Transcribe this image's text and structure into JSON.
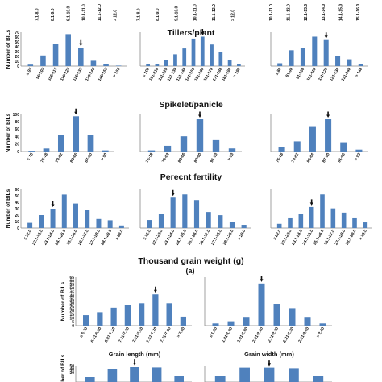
{
  "figure": {
    "section_titles": [
      "Tillers/plant",
      "Spikelet/panicle",
      "Perecnt fertility",
      "Thousand grain weight (g)"
    ],
    "panel_label_a": "(a)",
    "ylabel": "Number of BILs",
    "sub_xlabels": [
      "Grain length (mm)",
      "Grain width (mm)"
    ]
  },
  "chart_data": [
    {
      "type": "bar",
      "title": "",
      "ylabel": "",
      "categories": [
        "7.1-8.0",
        "8.1-9.0",
        "9.1-10.0",
        "10.1-11.0",
        "11.1-12.0",
        "> 12.0"
      ],
      "values": [
        2,
        8,
        22,
        40,
        12,
        4
      ],
      "arrow_index": null
    },
    {
      "type": "bar",
      "title": "",
      "ylabel": "",
      "categories": [
        "7.1-8.0",
        "8.1-9.0",
        "9.1-10.0",
        "10.1-11.0",
        "11.1-12.0",
        "> 12.0"
      ],
      "values": [
        3,
        10,
        25,
        38,
        14,
        5
      ],
      "arrow_index": null
    },
    {
      "type": "bar",
      "title": "",
      "ylabel": "",
      "categories": [
        "10.1-11.0",
        "11.1-12.0",
        "12.1-13.0",
        "13.1-14.0",
        "14.1-15.0",
        "15.1-16.0"
      ],
      "values": [
        4,
        12,
        30,
        36,
        15,
        6
      ],
      "arrow_index": null
    },
    {
      "type": "bar",
      "title": "",
      "ylabel": "Number of BILs",
      "ylim": [
        0,
        70
      ],
      "yticks": [
        0,
        10,
        20,
        30,
        40,
        50,
        60,
        70
      ],
      "categories": [
        "≤ 95",
        "96-105",
        "106-115",
        "116-125",
        "126-135",
        "136-145",
        "145-155",
        "> 155"
      ],
      "values": [
        3,
        22,
        45,
        66,
        38,
        11,
        4,
        1
      ],
      "arrow_index": 4
    },
    {
      "type": "bar",
      "title": "",
      "ylabel": "",
      "categories": [
        "≤ 100",
        "101-110",
        "111-120",
        "121-130",
        "131-140",
        "141-150",
        "151-160",
        "161-170",
        "171-180",
        "181-190",
        "> 190"
      ],
      "values": [
        2,
        2,
        6,
        12,
        18,
        28,
        30,
        22,
        14,
        6,
        2
      ],
      "arrow_index": 6
    },
    {
      "type": "bar",
      "title": "",
      "ylabel": "",
      "categories": [
        "≤ 80",
        "81-90",
        "91-100",
        "101-110",
        "111-120",
        "121-130",
        "131-140",
        "> 140"
      ],
      "values": [
        5,
        28,
        32,
        52,
        46,
        18,
        12,
        4
      ],
      "arrow_index": 4
    },
    {
      "type": "bar",
      "title": "",
      "ylabel": "Number of BILs",
      "ylim": [
        0,
        100
      ],
      "yticks": [
        0,
        20,
        40,
        60,
        80,
        100
      ],
      "categories": [
        "< 75",
        "75-78",
        "79-82",
        "83-86",
        "87-90",
        "> 90"
      ],
      "values": [
        2,
        8,
        45,
        95,
        45,
        3
      ],
      "arrow_index": 3
    },
    {
      "type": "bar",
      "title": "",
      "ylabel": "",
      "categories": [
        "75-78",
        "79-82",
        "83-86",
        "87-90",
        "91-93",
        "> 93"
      ],
      "values": [
        3,
        15,
        40,
        85,
        30,
        8
      ],
      "arrow_index": 3
    },
    {
      "type": "bar",
      "title": "",
      "ylabel": "",
      "categories": [
        "75-78",
        "79-82",
        "83-86",
        "87-90",
        "91-93",
        "> 93"
      ],
      "values": [
        10,
        22,
        55,
        70,
        20,
        4
      ],
      "arrow_index": 3
    },
    {
      "type": "bar",
      "title": "",
      "ylabel": "Number of BILs",
      "ylim": [
        0,
        60
      ],
      "yticks": [
        0,
        10,
        20,
        30,
        40,
        50,
        60
      ],
      "categories": [
        "≤ 22.0",
        "22.1-23.0",
        "23.1-24.0",
        "24.1-25.0",
        "25.1-26.0",
        "26.1-27.0",
        "27.1-28.0",
        "28.1-29.0",
        "> 29.0"
      ],
      "values": [
        8,
        20,
        30,
        52,
        38,
        28,
        14,
        12,
        4
      ],
      "arrow_index": 2
    },
    {
      "type": "bar",
      "title": "",
      "ylabel": "",
      "categories": [
        "≤ 22.0",
        "22.1-23.0",
        "23.1-24.0",
        "24.1-25.0",
        "25.1-26.0",
        "26.1-27.0",
        "27.1-28.0",
        "28.1-29.0",
        "> 29.0"
      ],
      "values": [
        10,
        18,
        38,
        42,
        35,
        20,
        16,
        8,
        4
      ],
      "arrow_index": 2
    },
    {
      "type": "bar",
      "title": "",
      "ylabel": "",
      "categories": [
        "≤ 22.0",
        "22.1-23.0",
        "23.1-24.0",
        "24.1-25.0",
        "25.1-26.0",
        "26.1-27.0",
        "27.1-28.0",
        "28.1-29.0",
        "> 29.0"
      ],
      "values": [
        6,
        15,
        20,
        30,
        48,
        28,
        22,
        15,
        8
      ],
      "arrow_index": 3
    },
    {
      "type": "bar",
      "title": "",
      "xlabel": "Grain length (mm)",
      "ylabel": "Number of BILs",
      "ylim": [
        0,
        65
      ],
      "yticks": [
        0,
        5,
        10,
        15,
        20,
        25,
        30,
        35,
        40,
        45,
        50,
        55,
        60,
        65
      ],
      "categories": [
        "≤ 6.70",
        "6.71-6.90",
        "6.91-7.10",
        "7.11-7.30",
        "7.31-7.50",
        "7.51-7.70",
        "7.71-7.90",
        "> 7.90"
      ],
      "values": [
        14,
        18,
        24,
        28,
        30,
        42,
        30,
        12
      ],
      "arrow_index": 5
    },
    {
      "type": "bar",
      "title": "",
      "xlabel": "Grain width (mm)",
      "ylabel": "",
      "categories": [
        "≤ 1.80",
        "1.81-1.90",
        "1.91-2.00",
        "2.01-2.10",
        "2.11-2.20",
        "2.21-2.30",
        "2.31-2.40",
        "> 2.40"
      ],
      "values": [
        3,
        6,
        12,
        58,
        30,
        24,
        12,
        3
      ],
      "arrow_index": 3
    },
    {
      "type": "bar",
      "title": "",
      "ylabel": "Number of BILs",
      "ylim": [
        0,
        50
      ],
      "yticks": [
        30,
        40,
        50
      ],
      "categories": [
        "1",
        "2",
        "3",
        "4",
        "5"
      ],
      "values": [
        15,
        40,
        46,
        44,
        20
      ],
      "arrow_index": 2
    },
    {
      "type": "bar",
      "title": "",
      "ylabel": "",
      "categories": [
        "1",
        "2",
        "3",
        "4",
        "5"
      ],
      "values": [
        20,
        44,
        44,
        42,
        18
      ],
      "arrow_index": 2
    }
  ]
}
